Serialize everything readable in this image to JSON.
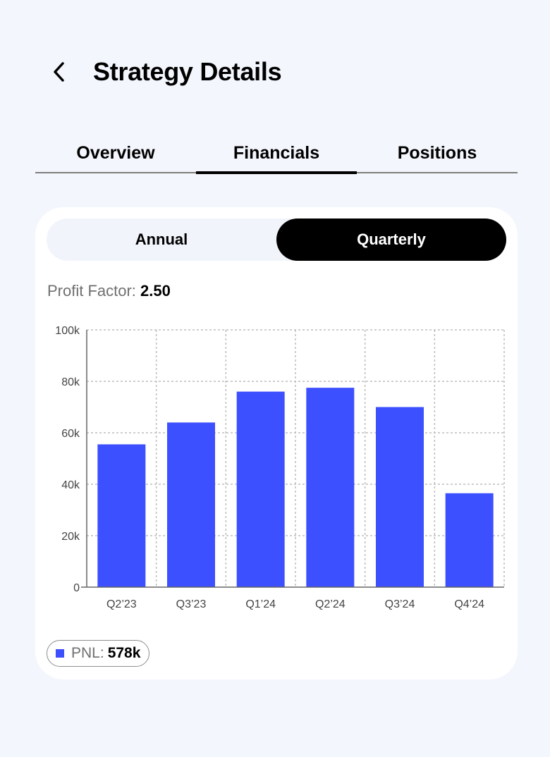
{
  "header": {
    "title": "Strategy Details",
    "back_icon": "chevron-left-icon"
  },
  "tabs": [
    {
      "label": "Overview",
      "active": false
    },
    {
      "label": "Financials",
      "active": true
    },
    {
      "label": "Positions",
      "active": false
    }
  ],
  "period_toggle": {
    "options": [
      "Annual",
      "Quarterly"
    ],
    "selected": "Quarterly"
  },
  "profit_factor": {
    "label": "Profit Factor:",
    "value": "2.50"
  },
  "legend": {
    "label": "PNL:",
    "value": "578k"
  },
  "colors": {
    "bar": "#3d50ff",
    "accent": "#000000",
    "background": "#f4f6fd"
  },
  "chart_data": {
    "type": "bar",
    "categories": [
      "Q2’23",
      "Q3’23",
      "Q1’24",
      "Q2’24",
      "Q3’24",
      "Q4’24"
    ],
    "series": [
      {
        "name": "PNL",
        "values": [
          55500,
          64000,
          76000,
          77500,
          70000,
          36500
        ]
      }
    ],
    "ylim": [
      0,
      100000
    ],
    "yticks": [
      0,
      20000,
      40000,
      60000,
      80000,
      100000
    ],
    "ytick_labels": [
      "0",
      "20k",
      "40k",
      "60k",
      "80k",
      "100k"
    ],
    "grid": true,
    "grid_style": "dotted",
    "legend_position": "bottom-left",
    "title": "",
    "xlabel": "",
    "ylabel": ""
  }
}
